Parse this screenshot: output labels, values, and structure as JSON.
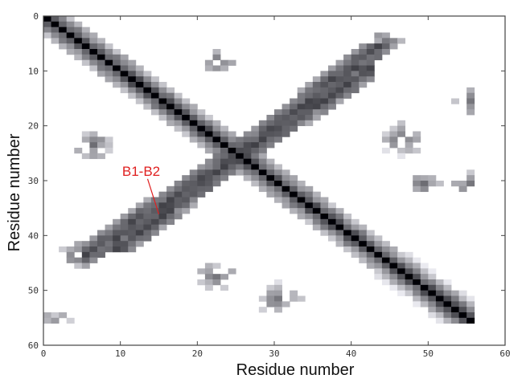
{
  "chart_data": {
    "type": "heatmap",
    "title": "",
    "xlabel": "Residue number",
    "ylabel": "Residue number",
    "xlim": [
      0,
      60
    ],
    "ylim": [
      0,
      60
    ],
    "y_inverted": true,
    "x_ticks": [
      "0",
      "10",
      "20",
      "30",
      "40",
      "50",
      "60"
    ],
    "y_ticks": [
      "0",
      "10",
      "20",
      "30",
      "40",
      "50",
      "60"
    ],
    "grid": false,
    "colormap": "grayscale (white = no contact, black = contact)",
    "matrix_size": 56,
    "diagonal_band": {
      "from": 0,
      "to": 55,
      "width": 3
    },
    "anti_diagonal_band": {
      "from": [
        43,
        5
      ],
      "to": [
        9,
        42
      ],
      "label": "B1-B2"
    },
    "contact_clusters": [
      {
        "center": [
          22,
          8
        ],
        "radius": 2
      },
      {
        "center": [
          44,
          4
        ],
        "radius": 2
      },
      {
        "center": [
          6,
          23
        ],
        "radius": 2.5
      },
      {
        "center": [
          46,
          22
        ],
        "radius": 3
      },
      {
        "center": [
          49,
          30
        ],
        "radius": 2
      },
      {
        "center": [
          4,
          43
        ],
        "radius": 2.5
      },
      {
        "center": [
          22,
          47
        ],
        "radius": 2.5
      },
      {
        "center": [
          30,
          51
        ],
        "radius": 3
      },
      {
        "center": [
          1,
          56
        ],
        "radius": 2.5
      },
      {
        "center": [
          55,
          15
        ],
        "radius": 2
      },
      {
        "center": [
          55,
          30
        ],
        "radius": 2
      }
    ],
    "annotations": [
      {
        "text": "B1-B2",
        "x": 15,
        "y": 37,
        "color": "#e02020"
      }
    ]
  }
}
